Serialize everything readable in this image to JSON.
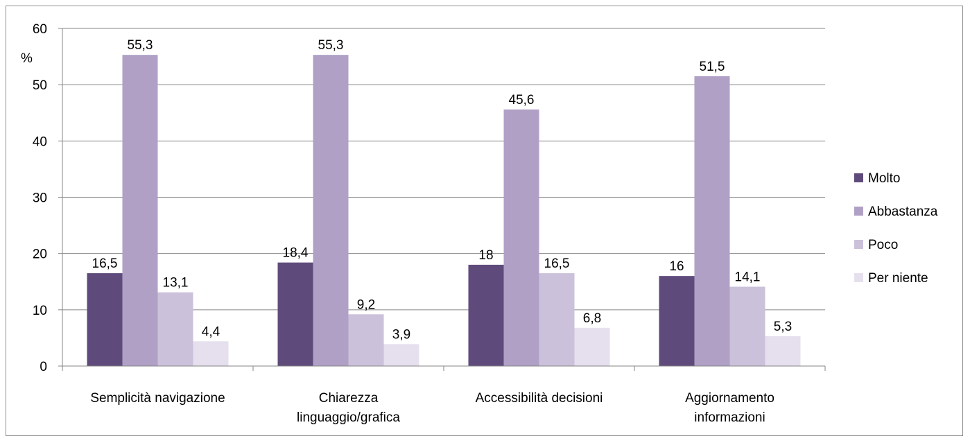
{
  "chart_data": {
    "type": "bar",
    "categories": [
      [
        "Semplicità navigazione"
      ],
      [
        "Chiarezza",
        "linguaggio/grafica"
      ],
      [
        "Accessibilità decisioni"
      ],
      [
        "Aggiornamento",
        "informazioni"
      ]
    ],
    "series": [
      {
        "name": "Molto",
        "color": "#5f4b7b",
        "values": [
          16.5,
          18.4,
          18,
          16
        ],
        "labels": [
          "16,5",
          "18,4",
          "18",
          "16"
        ]
      },
      {
        "name": "Abbastanza",
        "color": "#b0a0c6",
        "values": [
          55.3,
          55.3,
          45.6,
          51.5
        ],
        "labels": [
          "55,3",
          "55,3",
          "45,6",
          "51,5"
        ]
      },
      {
        "name": "Poco",
        "color": "#cbc1da",
        "values": [
          13.1,
          9.2,
          16.5,
          14.1
        ],
        "labels": [
          "13,1",
          "9,2",
          "16,5",
          "14,1"
        ]
      },
      {
        "name": "Per niente",
        "color": "#e6e0ee",
        "values": [
          4.4,
          3.9,
          6.8,
          5.3
        ],
        "labels": [
          "4,4",
          "3,9",
          "6,8",
          "5,3"
        ]
      }
    ],
    "ylabel": "%",
    "ylim": [
      0,
      60
    ],
    "yticks": [
      0,
      10,
      20,
      30,
      40,
      50,
      60
    ],
    "grid": true,
    "legend_position": "right"
  }
}
